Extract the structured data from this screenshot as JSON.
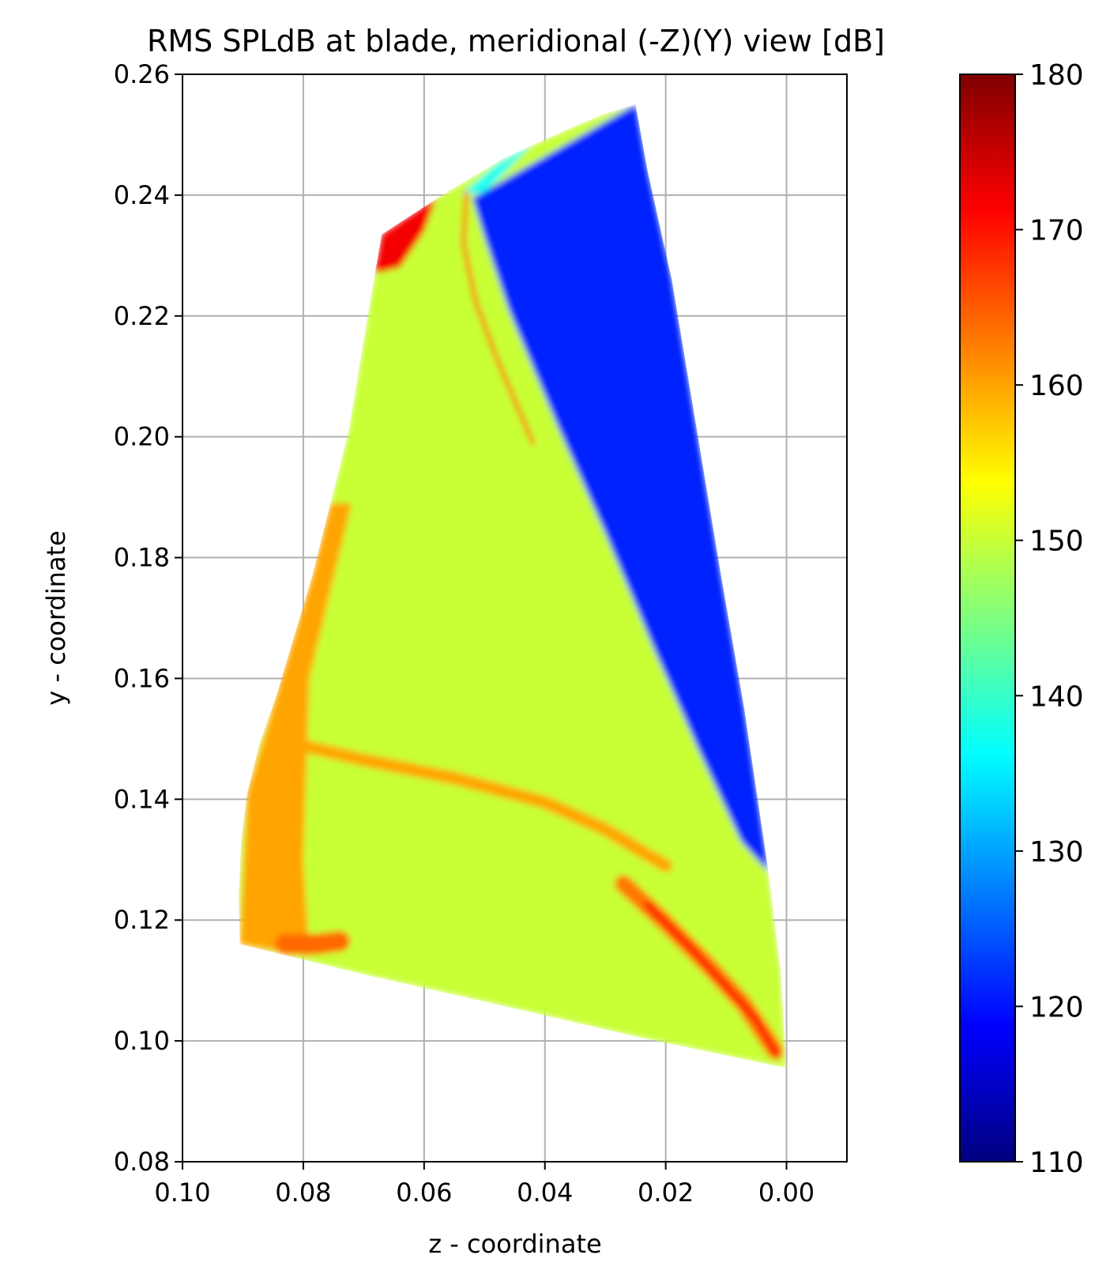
{
  "chart_data": {
    "type": "heatmap",
    "title": "RMS SPLdB at blade, meridional (-Z)(Y) view [dB]",
    "xlabel": "z - coordinate",
    "ylabel": "y - coordinate",
    "xlim": [
      0.1,
      -0.01
    ],
    "ylim": [
      0.08,
      0.26
    ],
    "x_inverted": true,
    "grid": true,
    "xticks": [
      0.1,
      0.08,
      0.06,
      0.04,
      0.02,
      0.0
    ],
    "xtick_labels": [
      "0.10",
      "0.08",
      "0.06",
      "0.04",
      "0.02",
      "0.00"
    ],
    "yticks": [
      0.08,
      0.1,
      0.12,
      0.14,
      0.16,
      0.18,
      0.2,
      0.22,
      0.24,
      0.26
    ],
    "ytick_labels": [
      "0.08",
      "0.10",
      "0.12",
      "0.14",
      "0.16",
      "0.18",
      "0.20",
      "0.22",
      "0.24",
      "0.26"
    ],
    "colormap": "jet",
    "colorbar": {
      "range": [
        110,
        180
      ],
      "ticks": [
        110,
        120,
        130,
        140,
        150,
        160,
        170,
        180
      ],
      "tick_labels": [
        "110",
        "120",
        "130",
        "140",
        "150",
        "160",
        "170",
        "180"
      ],
      "colors": [
        "#00007f",
        "#0000ff",
        "#007fff",
        "#00ffff",
        "#7fff7f",
        "#ffff00",
        "#ff7f00",
        "#ff0000",
        "#7f0000"
      ]
    },
    "blade_outline": [
      {
        "z": 0.0905,
        "y": 0.116
      },
      {
        "z": 0.0907,
        "y": 0.124
      },
      {
        "z": 0.0903,
        "y": 0.133
      },
      {
        "z": 0.0893,
        "y": 0.141
      },
      {
        "z": 0.0873,
        "y": 0.149
      },
      {
        "z": 0.0845,
        "y": 0.157
      },
      {
        "z": 0.0815,
        "y": 0.167
      },
      {
        "z": 0.0785,
        "y": 0.177
      },
      {
        "z": 0.0755,
        "y": 0.189
      },
      {
        "z": 0.0725,
        "y": 0.201
      },
      {
        "z": 0.0705,
        "y": 0.213
      },
      {
        "z": 0.0685,
        "y": 0.225
      },
      {
        "z": 0.067,
        "y": 0.2335
      },
      {
        "z": 0.057,
        "y": 0.24
      },
      {
        "z": 0.047,
        "y": 0.246
      },
      {
        "z": 0.036,
        "y": 0.251
      },
      {
        "z": 0.03,
        "y": 0.2535
      },
      {
        "z": 0.025,
        "y": 0.255
      },
      {
        "z": 0.023,
        "y": 0.244
      },
      {
        "z": 0.019,
        "y": 0.226
      },
      {
        "z": 0.015,
        "y": 0.202
      },
      {
        "z": 0.011,
        "y": 0.178
      },
      {
        "z": 0.007,
        "y": 0.155
      },
      {
        "z": 0.003,
        "y": 0.128
      },
      {
        "z": 0.001,
        "y": 0.112
      },
      {
        "z": 0.0,
        "y": 0.0955
      },
      {
        "z": 0.024,
        "y": 0.1005
      },
      {
        "z": 0.05,
        "y": 0.1065
      },
      {
        "z": 0.07,
        "y": 0.111
      },
      {
        "z": 0.0905,
        "y": 0.116
      }
    ],
    "regions": [
      {
        "name": "low-level suction-side zone",
        "level_db": 121,
        "points": [
          {
            "z": 0.052,
            "y": 0.2395
          },
          {
            "z": 0.025,
            "y": 0.255
          },
          {
            "z": 0.023,
            "y": 0.244
          },
          {
            "z": 0.019,
            "y": 0.226
          },
          {
            "z": 0.015,
            "y": 0.202
          },
          {
            "z": 0.011,
            "y": 0.178
          },
          {
            "z": 0.007,
            "y": 0.155
          },
          {
            "z": 0.003,
            "y": 0.128
          },
          {
            "z": 0.0075,
            "y": 0.133
          },
          {
            "z": 0.0145,
            "y": 0.148
          },
          {
            "z": 0.022,
            "y": 0.165
          },
          {
            "z": 0.03,
            "y": 0.184
          },
          {
            "z": 0.038,
            "y": 0.202
          },
          {
            "z": 0.046,
            "y": 0.221
          },
          {
            "z": 0.05,
            "y": 0.233
          }
        ]
      },
      {
        "name": "cyan band",
        "level_db": 137,
        "points": [
          {
            "z": 0.054,
            "y": 0.24
          },
          {
            "z": 0.048,
            "y": 0.245
          },
          {
            "z": 0.042,
            "y": 0.2485
          },
          {
            "z": 0.05,
            "y": 0.2405
          }
        ]
      },
      {
        "name": "leading-edge high zone",
        "level_db": 160,
        "points": [
          {
            "z": 0.0905,
            "y": 0.116
          },
          {
            "z": 0.0893,
            "y": 0.141
          },
          {
            "z": 0.0845,
            "y": 0.157
          },
          {
            "z": 0.0785,
            "y": 0.177
          },
          {
            "z": 0.0755,
            "y": 0.189
          },
          {
            "z": 0.072,
            "y": 0.189
          },
          {
            "z": 0.079,
            "y": 0.16
          },
          {
            "z": 0.08,
            "y": 0.13
          },
          {
            "z": 0.079,
            "y": 0.114
          }
        ]
      },
      {
        "name": "tip corner peak",
        "level_db": 172,
        "points": [
          {
            "z": 0.067,
            "y": 0.2335
          },
          {
            "z": 0.058,
            "y": 0.2395
          },
          {
            "z": 0.06,
            "y": 0.234
          },
          {
            "z": 0.064,
            "y": 0.228
          },
          {
            "z": 0.0682,
            "y": 0.227
          }
        ]
      }
    ],
    "bands": [
      {
        "name": "shock line",
        "level_db": 165,
        "width": 5,
        "points": [
          {
            "z": 0.053,
            "y": 0.2405
          },
          {
            "z": 0.0535,
            "y": 0.232
          },
          {
            "z": 0.0515,
            "y": 0.2225
          },
          {
            "z": 0.048,
            "y": 0.213
          },
          {
            "z": 0.042,
            "y": 0.199
          }
        ]
      },
      {
        "name": "mid-span band",
        "level_db": 160,
        "width": 16,
        "points": [
          {
            "z": 0.085,
            "y": 0.15
          },
          {
            "z": 0.07,
            "y": 0.1465
          },
          {
            "z": 0.055,
            "y": 0.1435
          },
          {
            "z": 0.04,
            "y": 0.1395
          },
          {
            "z": 0.03,
            "y": 0.135
          },
          {
            "z": 0.02,
            "y": 0.129
          }
        ]
      },
      {
        "name": "trailing-edge streak outer",
        "level_db": 163,
        "width": 22,
        "points": [
          {
            "z": 0.027,
            "y": 0.126
          },
          {
            "z": 0.02,
            "y": 0.1195
          },
          {
            "z": 0.013,
            "y": 0.1125
          },
          {
            "z": 0.007,
            "y": 0.106
          },
          {
            "z": 0.002,
            "y": 0.0985
          }
        ]
      },
      {
        "name": "trailing-edge streak core",
        "level_db": 170,
        "width": 9,
        "points": [
          {
            "z": 0.023,
            "y": 0.1225
          },
          {
            "z": 0.016,
            "y": 0.1155
          },
          {
            "z": 0.01,
            "y": 0.109
          },
          {
            "z": 0.005,
            "y": 0.1035
          },
          {
            "z": 0.0015,
            "y": 0.0975
          }
        ]
      },
      {
        "name": "lower-left blob",
        "level_db": 164,
        "width": 26,
        "points": [
          {
            "z": 0.083,
            "y": 0.116
          },
          {
            "z": 0.078,
            "y": 0.116
          },
          {
            "z": 0.074,
            "y": 0.1165
          }
        ]
      }
    ]
  }
}
